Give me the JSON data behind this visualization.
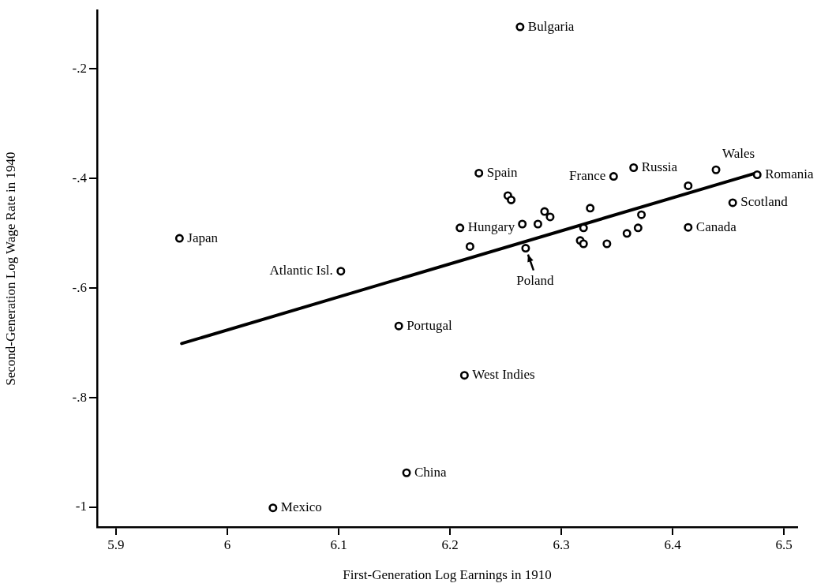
{
  "chart_data": {
    "type": "scatter",
    "xlabel": "First-Generation Log Earnings in 1910",
    "ylabel": "Second-Generation Log Wage Rate in 1940",
    "xlim": [
      5.883,
      6.512
    ],
    "ylim": [
      -1.036,
      -0.093
    ],
    "xticks": [
      5.9,
      6,
      6.1,
      6.2,
      6.3,
      6.4,
      6.5
    ],
    "yticks": [
      {
        "value": -0.2,
        "label": "-.2"
      },
      {
        "value": -0.4,
        "label": "-.4"
      },
      {
        "value": -0.6,
        "label": "-.6"
      },
      {
        "value": -0.8,
        "label": "-.8"
      },
      {
        "value": -1,
        "label": "-1"
      }
    ],
    "grid": false,
    "legend": false,
    "marker": "circle",
    "series": [
      {
        "color": "#000000",
        "x": [
          6.263,
          6.226,
          5.957,
          6.209,
          6.102,
          6.154,
          6.213,
          6.161,
          6.041,
          6.268,
          6.347,
          6.365,
          6.439,
          6.476,
          6.454,
          6.414,
          6.252,
          6.255,
          6.218,
          6.265,
          6.279,
          6.285,
          6.29,
          6.317,
          6.32,
          6.32,
          6.326,
          6.341,
          6.359,
          6.369,
          6.372,
          6.414
        ],
        "values": [
          -0.123,
          -0.39,
          -0.509,
          -0.49,
          -0.569,
          -0.669,
          -0.759,
          -0.937,
          -1.001,
          -0.527,
          -0.396,
          -0.38,
          -0.384,
          -0.393,
          -0.444,
          -0.489,
          -0.431,
          -0.439,
          -0.524,
          -0.483,
          -0.483,
          -0.46,
          -0.47,
          -0.513,
          -0.49,
          -0.519,
          -0.454,
          -0.519,
          -0.5,
          -0.49,
          -0.466,
          -0.413
        ]
      },
      {
        "type": "line",
        "color": "#000000",
        "x": [
          5.959,
          6.473
        ],
        "values": [
          -0.701,
          -0.391
        ],
        "marker": "none",
        "line_style": "solid"
      }
    ],
    "annotations": [
      {
        "text": "Bulgaria",
        "x": 6.263,
        "y": -0.123
      },
      {
        "text": "Spain",
        "x": 6.226,
        "y": -0.39
      },
      {
        "text": "Japan",
        "x": 5.957,
        "y": -0.509
      },
      {
        "text": "Hungary",
        "x": 6.209,
        "y": -0.49
      },
      {
        "text": "Atlantic Isl.",
        "x": 6.102,
        "y": -0.569
      },
      {
        "text": "Portugal",
        "x": 6.154,
        "y": -0.669
      },
      {
        "text": "West Indies",
        "x": 6.213,
        "y": -0.759
      },
      {
        "text": "China",
        "x": 6.161,
        "y": -0.937
      },
      {
        "text": "Mexico",
        "x": 6.041,
        "y": -1.001
      },
      {
        "text": "Poland",
        "x": 6.268,
        "y": -0.527
      },
      {
        "text": "France",
        "x": 6.347,
        "y": -0.396
      },
      {
        "text": "Russia",
        "x": 6.365,
        "y": -0.38
      },
      {
        "text": "Wales",
        "x": 6.439,
        "y": -0.384
      },
      {
        "text": "Romania",
        "x": 6.476,
        "y": -0.393
      },
      {
        "text": "Scotland",
        "x": 6.454,
        "y": -0.444
      },
      {
        "text": "Canada",
        "x": 6.414,
        "y": -0.489
      }
    ]
  }
}
